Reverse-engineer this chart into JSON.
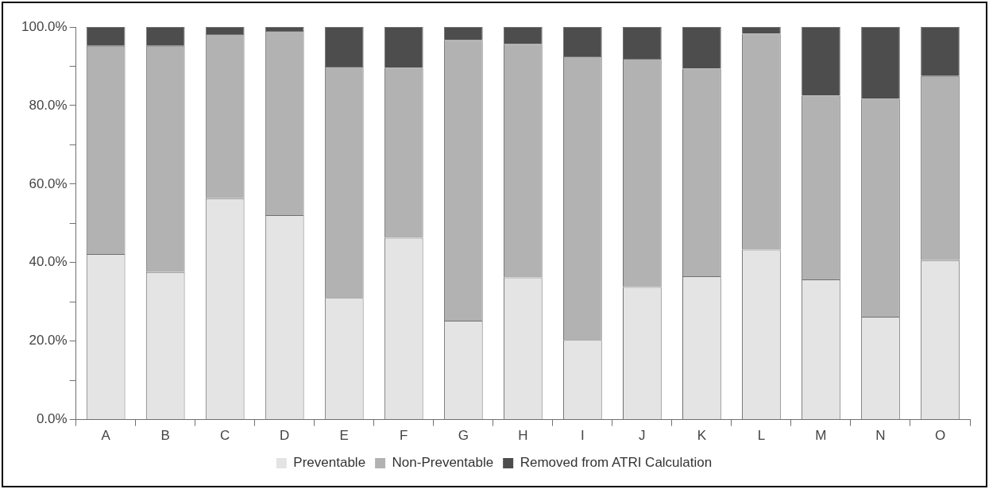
{
  "chart_data": {
    "type": "bar",
    "stacked": true,
    "categories": [
      "A",
      "B",
      "C",
      "D",
      "E",
      "F",
      "G",
      "H",
      "I",
      "J",
      "K",
      "L",
      "M",
      "N",
      "O"
    ],
    "series": [
      {
        "name": "Preventable",
        "color": "#e4e4e4",
        "values": [
          42.2,
          37.6,
          56.4,
          52.1,
          31.0,
          46.3,
          25.2,
          36.2,
          20.3,
          33.8,
          36.5,
          43.3,
          35.7,
          26.2,
          40.6
        ]
      },
      {
        "name": "Non-Preventable",
        "color": "#b2b2b2",
        "values": [
          53.0,
          57.6,
          41.8,
          46.9,
          58.9,
          43.3,
          71.5,
          59.5,
          72.2,
          58.1,
          52.9,
          55.0,
          46.8,
          55.5,
          46.9
        ]
      },
      {
        "name": "Removed from ATRI Calculation",
        "color": "#4d4d4d",
        "values": [
          4.8,
          4.8,
          1.8,
          1.0,
          10.1,
          10.4,
          3.3,
          4.3,
          7.5,
          8.1,
          10.6,
          1.7,
          17.5,
          18.3,
          12.5
        ]
      }
    ],
    "ylim": [
      0,
      100
    ],
    "yticks": [
      {
        "value": 0,
        "label": "0.0%"
      },
      {
        "value": 10,
        "label": null
      },
      {
        "value": 20,
        "label": "20.0%"
      },
      {
        "value": 30,
        "label": null
      },
      {
        "value": 40,
        "label": "40.0%"
      },
      {
        "value": 50,
        "label": null
      },
      {
        "value": 60,
        "label": "60.0%"
      },
      {
        "value": 70,
        "label": null
      },
      {
        "value": 80,
        "label": "80.0%"
      },
      {
        "value": 90,
        "label": null
      },
      {
        "value": 100,
        "label": "100.0%"
      }
    ],
    "grid": false,
    "legend": "bottom"
  }
}
